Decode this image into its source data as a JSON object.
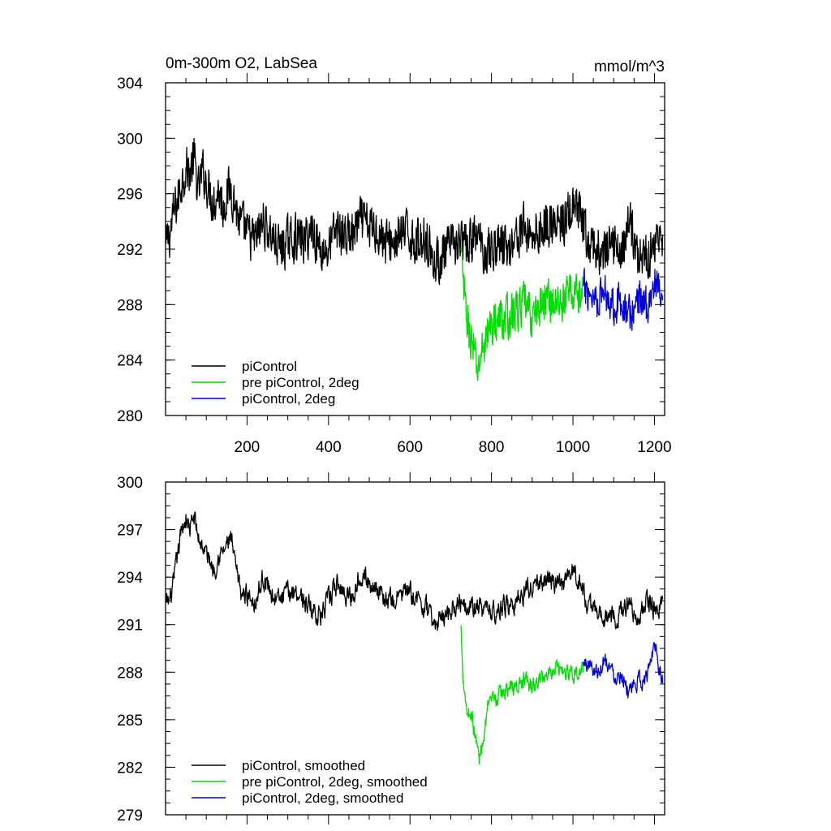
{
  "chart_data": [
    {
      "type": "line",
      "title": "0m-300m O2, LabSea",
      "units": "mmol/m^3",
      "xlabel": "",
      "ylabel": "",
      "xlim": [
        0,
        1225
      ],
      "ylim": [
        280,
        304
      ],
      "xticks": [
        200,
        400,
        600,
        800,
        1000,
        1200
      ],
      "xtick_labels": [
        "200",
        "400",
        "600",
        "800",
        "1000",
        "1200"
      ],
      "yticks": [
        280,
        284,
        288,
        292,
        296,
        300,
        304
      ],
      "ytick_labels": [
        "280",
        "284",
        "288",
        "292",
        "296",
        "300",
        "304"
      ],
      "legend_position": "bottom-left",
      "series": [
        {
          "name": "piControl",
          "color": "#000000",
          "x_start": 1,
          "x_end": 1220,
          "x": [
            1,
            10,
            20,
            30,
            40,
            50,
            60,
            70,
            80,
            90,
            100,
            110,
            120,
            130,
            140,
            150,
            160,
            170,
            180,
            190,
            200,
            220,
            240,
            260,
            280,
            300,
            320,
            340,
            360,
            380,
            400,
            420,
            440,
            460,
            480,
            500,
            520,
            540,
            560,
            580,
            600,
            620,
            640,
            660,
            680,
            700,
            720,
            740,
            760,
            780,
            800,
            820,
            840,
            860,
            880,
            900,
            920,
            940,
            960,
            980,
            1000,
            1020,
            1040,
            1060,
            1080,
            1100,
            1120,
            1140,
            1160,
            1180,
            1200,
            1220
          ],
          "values": [
            292.0,
            293.0,
            294.5,
            295.5,
            297.0,
            298.0,
            297.5,
            298.5,
            296.0,
            297.5,
            297.0,
            296.0,
            295.5,
            296.5,
            295.0,
            296.0,
            296.5,
            295.5,
            294.0,
            293.5,
            293.0,
            292.5,
            294.0,
            293.0,
            292.0,
            292.5,
            293.0,
            292.5,
            293.5,
            292.0,
            292.0,
            293.5,
            293.0,
            293.0,
            294.0,
            293.5,
            293.5,
            292.5,
            292.5,
            293.0,
            293.0,
            292.5,
            293.0,
            291.0,
            291.5,
            292.0,
            292.5,
            292.0,
            293.0,
            292.0,
            292.0,
            292.5,
            292.0,
            293.0,
            293.5,
            293.0,
            293.5,
            294.0,
            293.5,
            294.0,
            295.0,
            294.0,
            292.0,
            292.0,
            291.5,
            292.5,
            292.0,
            294.0,
            291.5,
            291.5,
            292.5,
            293.0
          ],
          "noise_amplitude": 2.4
        },
        {
          "name": "pre piControl, 2deg",
          "color": "#00dd00",
          "x_start": 725,
          "x_end": 1025,
          "x": [
            725,
            735,
            745,
            755,
            765,
            775,
            785,
            800,
            820,
            840,
            860,
            880,
            900,
            920,
            940,
            960,
            980,
            1000,
            1025
          ],
          "values": [
            291.5,
            288.0,
            286.0,
            285.0,
            283.0,
            284.5,
            285.5,
            286.5,
            287.0,
            287.0,
            287.5,
            288.0,
            287.0,
            288.0,
            288.5,
            288.0,
            288.5,
            289.0,
            288.5
          ],
          "noise_amplitude": 2.2
        },
        {
          "name": "piControl, 2deg",
          "color": "#0000dd",
          "x_start": 1025,
          "x_end": 1220,
          "x": [
            1025,
            1040,
            1060,
            1080,
            1100,
            1120,
            1140,
            1160,
            1180,
            1200,
            1220
          ],
          "values": [
            289.0,
            289.0,
            288.5,
            289.0,
            288.0,
            288.5,
            287.0,
            288.5,
            288.0,
            289.5,
            288.0
          ],
          "noise_amplitude": 2.0
        }
      ]
    },
    {
      "type": "line",
      "title": "",
      "xlabel": "",
      "ylabel": "",
      "xlim": [
        0,
        1225
      ],
      "ylim": [
        279,
        300
      ],
      "xticks": [
        200,
        400,
        600,
        800,
        1000,
        1200
      ],
      "xtick_labels": [],
      "yticks": [
        279,
        282,
        285,
        288,
        291,
        294,
        297,
        300
      ],
      "ytick_labels": [
        "279",
        "282",
        "285",
        "288",
        "291",
        "294",
        "297",
        "300"
      ],
      "legend_position": "bottom-left",
      "series": [
        {
          "name": "piControl, smoothed",
          "color": "#000000",
          "x_start": 1,
          "x_end": 1220,
          "x": [
            1,
            10,
            20,
            30,
            40,
            50,
            60,
            70,
            80,
            90,
            100,
            110,
            120,
            130,
            140,
            150,
            160,
            170,
            180,
            190,
            200,
            220,
            240,
            260,
            280,
            300,
            320,
            340,
            360,
            380,
            400,
            420,
            440,
            460,
            480,
            500,
            520,
            540,
            560,
            580,
            600,
            620,
            640,
            660,
            680,
            700,
            720,
            740,
            760,
            780,
            800,
            820,
            840,
            860,
            880,
            900,
            920,
            940,
            960,
            980,
            1000,
            1020,
            1040,
            1060,
            1080,
            1100,
            1120,
            1140,
            1160,
            1180,
            1200,
            1220
          ],
          "values": [
            292.2,
            292.5,
            293.5,
            295.5,
            297.0,
            297.8,
            297.0,
            297.8,
            296.5,
            296.0,
            295.5,
            295.0,
            294.5,
            295.5,
            295.5,
            296.0,
            296.5,
            294.8,
            293.5,
            292.8,
            293.0,
            292.5,
            294.0,
            293.0,
            292.5,
            293.0,
            293.2,
            292.5,
            292.0,
            291.5,
            292.5,
            293.5,
            293.0,
            292.8,
            294.5,
            293.5,
            293.5,
            292.5,
            292.5,
            293.0,
            293.0,
            292.5,
            292.0,
            291.0,
            291.5,
            292.0,
            292.5,
            292.5,
            292.0,
            292.0,
            291.8,
            292.0,
            292.2,
            292.5,
            293.0,
            293.5,
            293.5,
            294.0,
            293.5,
            293.5,
            294.5,
            293.5,
            292.0,
            292.0,
            291.5,
            291.5,
            291.8,
            292.5,
            291.2,
            292.5,
            292.0,
            292.5
          ],
          "noise_amplitude": 1.2
        },
        {
          "name": "pre piControl, 2deg, smoothed",
          "color": "#00dd00",
          "x_start": 725,
          "x_end": 1025,
          "x": [
            725,
            730,
            740,
            750,
            760,
            770,
            780,
            790,
            800,
            820,
            840,
            860,
            880,
            900,
            920,
            940,
            960,
            980,
            1000,
            1025
          ],
          "values": [
            290.8,
            288.0,
            285.5,
            285.5,
            284.0,
            282.5,
            284.0,
            285.5,
            286.0,
            286.5,
            287.0,
            287.0,
            287.5,
            287.0,
            287.5,
            288.0,
            288.5,
            288.0,
            288.0,
            288.0
          ],
          "noise_amplitude": 1.0
        },
        {
          "name": "piControl, 2deg, smoothed",
          "color": "#0000dd",
          "x_start": 1025,
          "x_end": 1220,
          "x": [
            1025,
            1040,
            1060,
            1080,
            1100,
            1120,
            1140,
            1160,
            1180,
            1200,
            1220
          ],
          "values": [
            288.5,
            288.5,
            288.0,
            289.0,
            287.8,
            288.0,
            286.5,
            287.5,
            287.5,
            290.0,
            287.5
          ],
          "noise_amplitude": 1.0
        }
      ]
    }
  ]
}
